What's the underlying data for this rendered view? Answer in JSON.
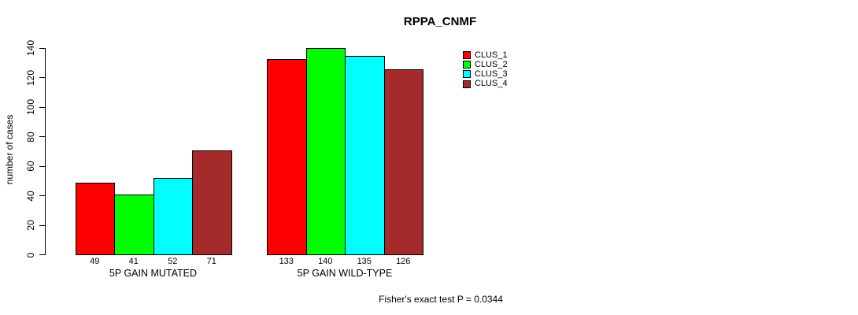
{
  "chart_data": {
    "type": "bar",
    "title": "RPPA_CNMF",
    "ylabel": "number of cases",
    "xlabel": "",
    "categories": [
      "5P GAIN MUTATED",
      "5P GAIN WILD-TYPE"
    ],
    "series": [
      {
        "name": "CLUS_1",
        "color": "#FF0000",
        "values": [
          49,
          133
        ]
      },
      {
        "name": "CLUS_2",
        "color": "#00FF00",
        "values": [
          41,
          140
        ]
      },
      {
        "name": "CLUS_3",
        "color": "#00FFFF",
        "values": [
          52,
          135
        ]
      },
      {
        "name": "CLUS_4",
        "color": "#A52A2A",
        "values": [
          71,
          126
        ]
      }
    ],
    "ylim": [
      0,
      140
    ],
    "yticks": [
      0,
      20,
      40,
      60,
      80,
      100,
      120,
      140
    ],
    "grid": false,
    "bar_value_labels_shown": true,
    "legend_position": "top-right",
    "annotation": "Fisher's exact test P = 0.0344"
  },
  "colors": {
    "background": "#FFFFFF",
    "axis": "#000000",
    "text": "#000000",
    "bar_border": "#000000"
  }
}
